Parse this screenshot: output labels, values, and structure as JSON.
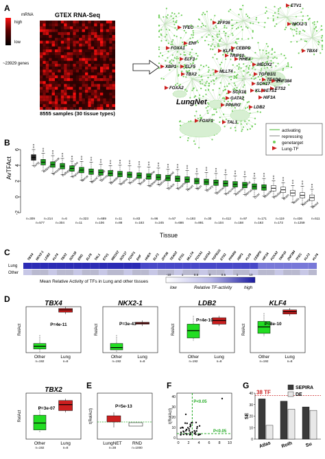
{
  "panel_letters": [
    "A",
    "B",
    "C",
    "D",
    "E",
    "F",
    "G"
  ],
  "panelA": {
    "heatmap_title": "GTEX RNA-Seq",
    "legend_title": "mRNA",
    "legend_high": "high",
    "legend_low": "low",
    "genes_label": "~23929 genes",
    "samples_label": "8555 samples (30 tissue types)",
    "network_title": "LungNet",
    "network_genes": [
      "TFEC",
      "FOXA1",
      "EHF",
      "ELF3",
      "ELF5",
      "TBX2",
      "FOXA2",
      "XBP1",
      "ZFP36",
      "KLF4",
      "CEBPD",
      "TRIP10",
      "HHEX",
      "NKX2-1",
      "ETV1",
      "TBX4",
      "TGFB1I1",
      "MEOX2",
      "TEAD2",
      "ZNF384",
      "ETS2",
      "MLLT4",
      "SOX18",
      "PPARG",
      "GATA2",
      "HIF3A",
      "SOX17",
      "KLF9",
      "ETS1",
      "LDB2",
      "FOXF1",
      "TAL1"
    ],
    "legend": {
      "activating": "activating",
      "repressing": "repressing",
      "genetarget": "genetarget",
      "lungtf": "Lung-TF"
    },
    "colors": {
      "activating": "#5fbf4a",
      "repressing": "#999999",
      "lungtf": "#cc1f1f",
      "target": "#6fcf5a"
    }
  },
  "panelB": {
    "ylabel": "AvTFAct",
    "xlabel": "Tissue",
    "chart_data": {
      "type": "box",
      "ylim": [
        -2,
        6
      ],
      "yticks": [
        -2,
        0,
        2,
        4,
        6
      ],
      "categories": [
        "Lung",
        "Adipose Tissue",
        "Breast",
        "Fallopian Tube",
        "Thyroid",
        "Nerve",
        "Blood Vessel",
        "Cervix Uteri",
        "Bladder",
        "Vagina",
        "Prostate",
        "Small Intestine",
        "Spleen",
        "Salivary Gland",
        "Colon",
        "Esophagus",
        "Heart",
        "Skin",
        "Ovary",
        "Stomach",
        "Pancreas",
        "Adrenal Gland",
        "Uterus",
        "Liver",
        "Muscle",
        "Pituitary",
        "Brain",
        "Testis",
        "Kidney",
        "Blood"
      ],
      "medians": [
        5.0,
        4.4,
        4.1,
        3.9,
        3.6,
        3.4,
        3.2,
        3.1,
        3.0,
        2.9,
        2.8,
        2.7,
        2.6,
        2.5,
        2.4,
        2.3,
        2.2,
        2.0,
        1.9,
        1.8,
        1.7,
        1.6,
        1.5,
        1.3,
        1.2,
        1.1,
        0.9,
        0.5,
        0.2,
        -0.1
      ],
      "n_top": [
        "n=309",
        "n=214",
        "n=6",
        "n=323",
        "n=689",
        "n=11",
        "n=83",
        "n=96",
        "n=57",
        "n=193",
        "n=30",
        "n=412",
        "n=97",
        "n=171",
        "n=119",
        "n=436",
        "n=511"
      ],
      "n_bottom": [
        "n=577",
        "n=304",
        "n=11",
        "n=106",
        "n=88",
        "n=183",
        "n=245",
        "n=686",
        "n=891",
        "n=104",
        "n=158",
        "n=163",
        "n=172",
        "n=1259"
      ],
      "box_color_green": "#1f9e1f",
      "box_color_white": "#ffffff"
    }
  },
  "panelC": {
    "genes": [
      "TBX4",
      "NKX2-1",
      "LDB2",
      "KLF4",
      "TBX2",
      "SOX18",
      "ERG",
      "ELF5",
      "TAL1",
      "ETV1",
      "MEOX2",
      "SOX17",
      "FOXF1",
      "EHF",
      "HHEX",
      "ELF3",
      "ZFP36",
      "TEAD2",
      "ETS1",
      "MLLT4",
      "FOXA1",
      "GATA2",
      "TGFB1I1",
      "ETS2",
      "PPARG",
      "XBP1",
      "KLF9",
      "CEBPD",
      "HIF3A",
      "FOXA2",
      "TRIP10",
      "ZNF384",
      "TFEC",
      "KLF2",
      "KLF6"
    ],
    "rows": [
      "Lung",
      "Other"
    ],
    "caption": "Mean Relative Activity of TFs in Lung and other tissues",
    "scale_ticks": [
      "-10",
      "1",
      "0.5",
      "0",
      "0.5",
      "1",
      "10"
    ],
    "scale_low": "low",
    "scale_mid": "Relative TF-activity",
    "scale_high": "high"
  },
  "panelD": {
    "ylabel": "RelAct",
    "plots": [
      {
        "gene": "TBX4",
        "pval": "P=4e-11",
        "other_n": "n=192",
        "lung_n": "n=8"
      },
      {
        "gene": "NKX2-1",
        "pval": "P=3e-43",
        "other_n": "n=192",
        "lung_n": "n=8"
      },
      {
        "gene": "LDB2",
        "pval": "P=4e-10",
        "other_n": "n=192",
        "lung_n": "n=8"
      },
      {
        "gene": "KLF4",
        "pval": "P=8e-10",
        "other_n": "n=192",
        "lung_n": "n=8"
      },
      {
        "gene": "TBX2",
        "pval": "P=3e-07",
        "other_n": "n=192",
        "lung_n": "n=8"
      }
    ],
    "other_label": "Other",
    "lung_label": "Lung"
  },
  "panelE": {
    "ylabel": "t(RelAct)",
    "pval": "P=5e-13",
    "labels": [
      "LungNET",
      "RND"
    ],
    "n": [
      "n=38",
      "n=1000"
    ]
  },
  "panelF": {
    "ylabel": "t(RelAct)",
    "xticks": [
      "0",
      "2",
      "4",
      "6",
      "8",
      "10"
    ],
    "yticks": [
      "0",
      "10",
      "20",
      "30",
      "40"
    ],
    "annot1": "P<0.05",
    "annot2": "P<0.05"
  },
  "panelG": {
    "ylabel": "SE",
    "legend": [
      "SEPIRA",
      "DE"
    ],
    "threshold_label": "38 TF",
    "chart_data": {
      "type": "bar",
      "categories": [
        "Atlas",
        "Roth",
        "Su"
      ],
      "series": [
        {
          "name": "SEPIRA",
          "values": [
            35,
            33,
            28
          ]
        },
        {
          "name": "DE",
          "values": [
            12,
            26,
            25
          ]
        }
      ],
      "ylim": [
        0,
        40
      ],
      "yticks": [
        0,
        10,
        20,
        30,
        40
      ],
      "threshold": 38
    }
  }
}
